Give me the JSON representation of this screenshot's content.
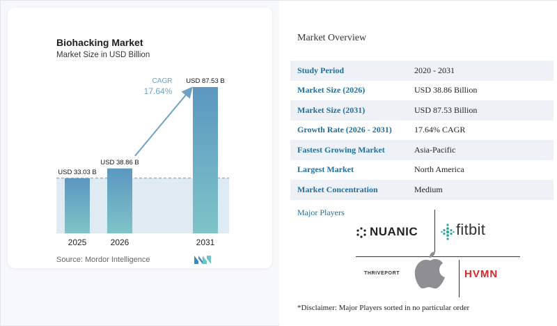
{
  "chart_data": {
    "type": "bar",
    "title": "Biohacking Market",
    "subtitle": "Market Size in USD Billion",
    "categories": [
      "2025",
      "2026",
      "2031"
    ],
    "values": [
      33.03,
      38.86,
      87.53
    ],
    "value_labels": [
      "USD 33.03 B",
      "USD 38.86 B",
      "USD 87.53 B"
    ],
    "cagr_label": "CAGR",
    "cagr_value": "17.64%",
    "source": "Source: Mordor Intelligence",
    "ylim": [
      0,
      87.53
    ],
    "colors": {
      "bar_top": "#5b97c0",
      "bar_bottom": "#7fc4c8",
      "baseline_fill": "#dfeaf3",
      "arrow": "#6fa1c2",
      "cagr_text": "#6fa1c2"
    }
  },
  "overview": {
    "title": "Market Overview",
    "rows": [
      {
        "key": "Study Period",
        "value": "2020 - 2031"
      },
      {
        "key": "Market Size (2026)",
        "value": "USD 38.86 Billion"
      },
      {
        "key": "Market Size (2031)",
        "value": "USD 87.53 Billion"
      },
      {
        "key": "Growth Rate (2026 - 2031)",
        "value": "17.64% CAGR"
      },
      {
        "key": "Fastest Growing Market",
        "value": "Asia-Pacific"
      },
      {
        "key": "Largest Market",
        "value": "North America"
      },
      {
        "key": "Market Concentration",
        "value": "Medium"
      }
    ]
  },
  "players": {
    "title": "Major Players",
    "logos": {
      "nuanic": "NUANIC",
      "fitbit": "fitbit",
      "thriveport": "THRIVEPORT",
      "hvmn": "HVMN",
      "apple": "apple-logo-icon"
    },
    "disclaimer": "*Disclaimer: Major Players sorted in no particular order"
  }
}
